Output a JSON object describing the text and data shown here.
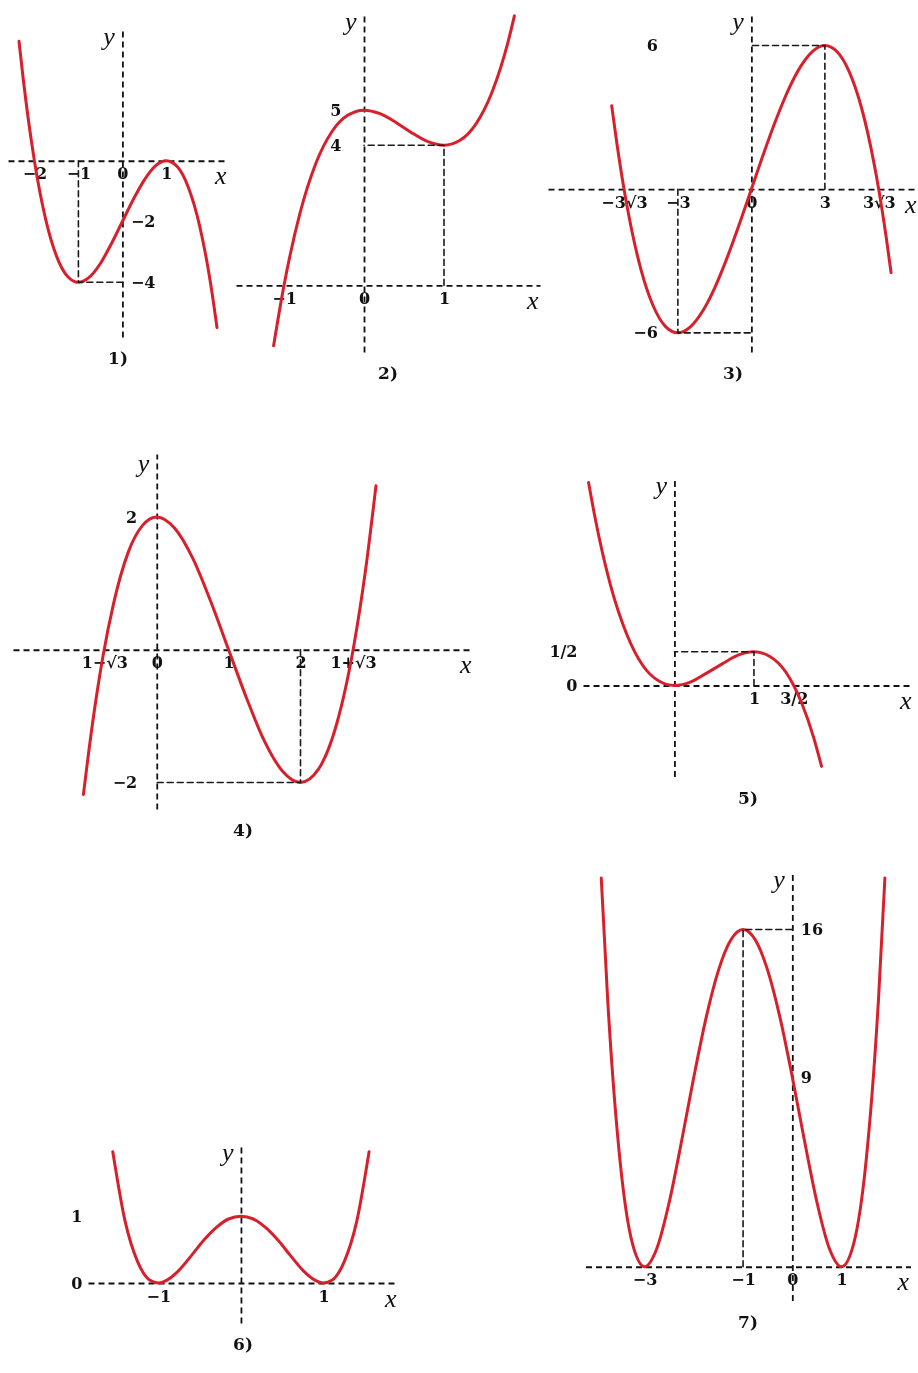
{
  "chart_data": [
    {
      "type": "line",
      "title": "1)",
      "xlabel": "x",
      "ylabel": "y",
      "xlim": [
        -2.6,
        2.4
      ],
      "ylim": [
        -5.8,
        4.4
      ],
      "xticks": [
        -2,
        -1,
        0,
        1
      ],
      "yticks": [
        -4,
        -2
      ],
      "series": [
        {
          "color": "#d7202c",
          "x": [
            -2.35,
            -2.25,
            -2,
            -1.75,
            -1.5,
            -1.25,
            -1,
            -0.75,
            -0.5,
            -0.25,
            0,
            0.25,
            0.5,
            0.75,
            1,
            1.25,
            1.5,
            1.75,
            2,
            2.15
          ],
          "values": [
            3.93,
            2.64,
            0,
            -1.89,
            -3.13,
            -3.8,
            -4,
            -3.83,
            -3.38,
            -2.73,
            -2,
            -1.27,
            -0.63,
            -0.17,
            0,
            -0.2,
            -0.88,
            -2.11,
            -4,
            -5.49
          ]
        },
        {
          "color": "#1a1a1a",
          "line_style": "dashed",
          "x": [
            -1,
            -1,
            0
          ],
          "values": [
            0,
            -4,
            -4
          ]
        }
      ]
    },
    {
      "type": "line",
      "title": "2)",
      "xlabel": "x",
      "ylabel": "y",
      "xlim": [
        -1.6,
        2.2
      ],
      "ylim": [
        -1.9,
        7.8
      ],
      "xticks": [
        -1,
        0,
        1
      ],
      "yticks": [
        4,
        5
      ],
      "series": [
        {
          "color": "#d7202c",
          "x": [
            -1.13,
            -1,
            -0.8,
            -0.6,
            -0.4,
            -0.2,
            0,
            0.2,
            0.4,
            0.5,
            0.6,
            0.8,
            1,
            1.2,
            1.4,
            1.6,
            1.8,
            1.88
          ],
          "values": [
            -1.72,
            0,
            2.06,
            3.49,
            4.39,
            4.86,
            5,
            4.9,
            4.65,
            4.5,
            4.35,
            4.1,
            4,
            4.14,
            4.61,
            5.51,
            6.94,
            7.69
          ]
        },
        {
          "color": "#1a1a1a",
          "line_style": "dashed",
          "x": [
            1,
            1,
            0
          ],
          "values": [
            0,
            4,
            4
          ]
        }
      ]
    },
    {
      "type": "line",
      "title": "3)",
      "xlabel": "x",
      "ylabel": "y",
      "xlim": [
        -8.3,
        6.8
      ],
      "ylim": [
        -6.8,
        7.4
      ],
      "xticks": [
        {
          "value": -5.2,
          "label": "−3√3"
        },
        -3,
        0,
        3,
        {
          "value": 5.2,
          "label": "3√3"
        }
      ],
      "yticks": [
        -6,
        6
      ],
      "series": [
        {
          "color": "#d7202c",
          "x": [
            -5.7,
            -5.5,
            -5.2,
            -5,
            -4.5,
            -4,
            -3.5,
            -3,
            -2.5,
            -2,
            -1.5,
            -1,
            -0.5,
            0,
            0.5,
            1,
            1.5,
            2,
            2.5,
            3,
            3.5,
            4,
            4.5,
            5,
            5.2,
            5.5,
            5.7
          ],
          "values": [
            3.48,
            1.99,
            0.02,
            -1.11,
            -3.38,
            -4.89,
            -5.74,
            -6,
            -5.76,
            -5.11,
            -4.13,
            -2.89,
            -1.49,
            0,
            1.49,
            2.89,
            4.13,
            5.11,
            5.76,
            6,
            5.74,
            4.89,
            3.38,
            1.11,
            -0.02,
            -1.99,
            -3.48
          ]
        },
        {
          "color": "#1a1a1a",
          "line_style": "dashed",
          "x": [
            -3,
            -3,
            0
          ],
          "values": [
            0,
            -6,
            -6
          ]
        },
        {
          "color": "#1a1a1a",
          "line_style": "dashed",
          "x": [
            3,
            3,
            0
          ],
          "values": [
            0,
            6,
            6
          ]
        }
      ]
    },
    {
      "type": "line",
      "title": "4)",
      "xlabel": "x",
      "ylabel": "y",
      "xlim": [
        -2,
        4.4
      ],
      "ylim": [
        -2.4,
        2.95
      ],
      "xticks": [
        {
          "value": -0.73,
          "label": "1−√3"
        },
        0,
        1,
        2,
        {
          "value": 2.73,
          "label": "1+√3"
        }
      ],
      "yticks": [
        -2,
        2
      ],
      "series": [
        {
          "color": "#d7202c",
          "x": [
            -1.02,
            -0.9,
            -0.75,
            -0.6,
            -0.4,
            -0.2,
            0,
            0.25,
            0.5,
            0.75,
            1,
            1.25,
            1.5,
            1.75,
            2,
            2.25,
            2.5,
            2.75,
            2.9,
            3.05
          ],
          "values": [
            -2.18,
            -1.16,
            -0.11,
            0.7,
            1.46,
            1.87,
            2,
            1.83,
            1.38,
            0.73,
            0,
            -0.73,
            -1.38,
            -1.83,
            -2,
            -1.8,
            -1.13,
            0.11,
            1.16,
            2.47
          ]
        },
        {
          "color": "#1a1a1a",
          "line_style": "dashed",
          "x": [
            2,
            2,
            0
          ],
          "values": [
            0,
            -2,
            -2
          ]
        }
      ]
    },
    {
      "type": "line",
      "title": "5)",
      "xlabel": "x",
      "ylabel": "y",
      "xlim": [
        -1.15,
        3
      ],
      "ylim": [
        -1.35,
        3.1
      ],
      "xticks": [
        1,
        {
          "value": 1.5,
          "label": "3/2"
        }
      ],
      "yticks": [
        0,
        {
          "value": 0.5,
          "label": "1/2"
        }
      ],
      "series": [
        {
          "color": "#d7202c",
          "x": [
            -1.08,
            -1,
            -0.8,
            -0.6,
            -0.4,
            -0.2,
            0,
            0.2,
            0.4,
            0.6,
            0.8,
            1,
            1.2,
            1.4,
            1.5,
            1.6,
            1.75,
            1.85
          ],
          "values": [
            3.01,
            2.5,
            1.47,
            0.76,
            0.3,
            0.07,
            0,
            0.05,
            0.18,
            0.32,
            0.45,
            0.5,
            0.43,
            0.2,
            0,
            -0.26,
            -0.77,
            -1.2
          ]
        },
        {
          "color": "#1a1a1a",
          "line_style": "dashed",
          "x": [
            1,
            1,
            0
          ],
          "values": [
            0,
            0.5,
            0.5
          ]
        }
      ]
    },
    {
      "type": "line",
      "title": "6)",
      "xlabel": "x",
      "ylabel": "y",
      "xlim": [
        -1.85,
        1.9
      ],
      "ylim": [
        -0.6,
        2.1
      ],
      "xticks": [
        -1,
        1
      ],
      "yticks": [
        0,
        1
      ],
      "series": [
        {
          "color": "#d7202c",
          "x": [
            -1.55,
            -1.4,
            -1.25,
            -1.1,
            -1,
            -0.9,
            -0.75,
            -0.6,
            -0.45,
            -0.3,
            -0.15,
            0,
            0.15,
            0.3,
            0.45,
            0.6,
            0.75,
            0.9,
            1,
            1.1,
            1.25,
            1.4,
            1.55
          ],
          "values": [
            1.97,
            0.92,
            0.32,
            0.04,
            0,
            0.04,
            0.19,
            0.41,
            0.64,
            0.83,
            0.96,
            1,
            0.96,
            0.83,
            0.64,
            0.41,
            0.19,
            0.04,
            0,
            0.04,
            0.32,
            0.92,
            1.97
          ]
        }
      ]
    },
    {
      "type": "line",
      "title": "7)",
      "xlabel": "x",
      "ylabel": "y",
      "xlim": [
        -4.2,
        2.4
      ],
      "ylim": [
        -1.6,
        18.8
      ],
      "xticks": [
        -3,
        -1,
        0,
        1
      ],
      "yticks": [
        9,
        16
      ],
      "series": [
        {
          "color": "#d7202c",
          "x": [
            -3.88,
            -3.75,
            -3.5,
            -3.25,
            -3,
            -2.75,
            -2.5,
            -2.25,
            -2,
            -1.75,
            -1.5,
            -1.25,
            -1,
            -0.75,
            -0.5,
            -0.25,
            0,
            0.25,
            0.5,
            0.75,
            1,
            1.25,
            1.5,
            1.75,
            1.88
          ],
          "values": [
            18.44,
            12.69,
            5.06,
            1.13,
            0,
            0.88,
            3.06,
            5.94,
            9,
            11.82,
            14.06,
            15.5,
            16,
            15.5,
            14.06,
            11.82,
            9,
            5.94,
            3.06,
            0.88,
            0,
            1.13,
            5.06,
            12.69,
            18.44
          ]
        },
        {
          "color": "#1a1a1a",
          "line_style": "dashed",
          "x": [
            -1,
            -1,
            0
          ],
          "values": [
            0,
            16,
            16
          ]
        }
      ]
    }
  ]
}
